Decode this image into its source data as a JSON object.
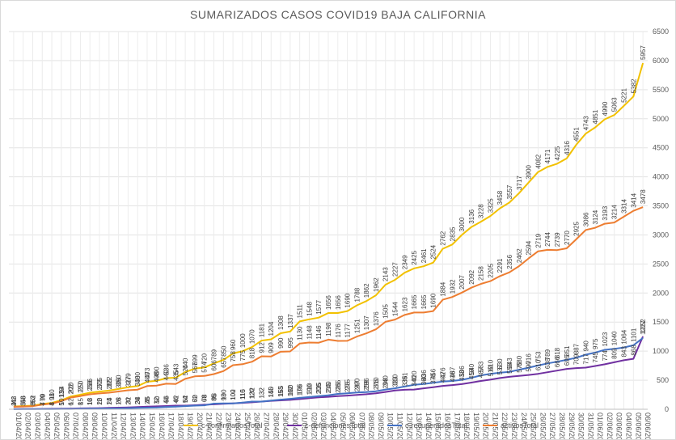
{
  "chart_data": {
    "type": "line",
    "title": "SUMARIZADOS CASOS COVID19 BAJA CALIFORNIA",
    "xlabel": "",
    "ylabel": "",
    "ylim": [
      0,
      6500
    ],
    "yticks": [
      0,
      500,
      1000,
      1500,
      2000,
      2500,
      3000,
      3500,
      4000,
      4500,
      5000,
      5500,
      6000,
      6500
    ],
    "grid": "vertical and horizontal",
    "legend_position": "bottom",
    "categories": [
      "01/04/20",
      "02/04/20",
      "03/04/20",
      "04/04/20",
      "05/04/20",
      "06/04/20",
      "07/04/20",
      "08/04/20",
      "09/04/20",
      "10/04/20",
      "11/04/20",
      "12/04/20",
      "13/04/20",
      "14/04/20",
      "15/04/20",
      "16/04/20",
      "17/04/20",
      "18/04/20",
      "19/04/20",
      "20/04/20",
      "21/04/20",
      "22/04/20",
      "23/04/20",
      "24/04/20",
      "25/04/20",
      "26/04/20",
      "27/04/20",
      "28/04/20",
      "29/04/20",
      "30/04/20",
      "01/05/20",
      "02/05/20",
      "03/05/20",
      "04/05/20",
      "05/05/20",
      "06/05/20",
      "07/05/20",
      "08/05/20",
      "09/05/20",
      "10/05/20",
      "11/05/20",
      "12/05/20",
      "13/05/20",
      "14/05/20",
      "15/05/20",
      "16/05/20",
      "17/05/20",
      "18/05/20",
      "19/05/20",
      "20/05/20",
      "21/05/20",
      "22/05/20",
      "23/05/20",
      "24/05/20",
      "25/05/20",
      "26/05/20",
      "27/05/20",
      "28/05/20",
      "29/05/20",
      "30/05/20",
      "31/05/20",
      "01/06/20",
      "02/06/20",
      "03/06/20",
      "04/06/20",
      "05/06/20",
      "06/06/20"
    ],
    "series": [
      {
        "name": "c-confirmadosTotal",
        "color": "#f2c100",
        "values": [
          48,
          56,
          62,
          90,
          110,
          154,
          220,
          250,
          286,
          305,
          322,
          350,
          379,
          400,
          473,
          490,
          536,
          543,
          640,
          699,
          720,
          789,
          850,
          960,
          1000,
          1070,
          1181,
          1204,
          1308,
          1337,
          1511,
          1548,
          1577,
          1656,
          1656,
          1690,
          1788,
          1862,
          1962,
          2143,
          2227,
          2349,
          2425,
          2461,
          2524,
          2762,
          2835,
          3000,
          3136,
          3228,
          3325,
          3458,
          3557,
          3717,
          3900,
          4082,
          4171,
          4225,
          4316,
          4551,
          4743,
          4851,
          4990,
          5063,
          5221,
          5382,
          5957
        ]
      },
      {
        "name": "c-defuncionesTotal",
        "color": "#7030a0",
        "values": [
          4,
          5,
          6,
          7,
          8,
          10,
          12,
          15,
          18,
          20,
          23,
          28,
          32,
          38,
          45,
          50,
          56,
          62,
          62,
          70,
          78,
          85,
          93,
          100,
          110,
          120,
          132,
          145,
          153,
          162,
          176,
          190,
          206,
          215,
          225,
          235,
          247,
          259,
          276,
          298,
          323,
          335,
          340,
          360,
          378,
          402,
          416,
          433,
          459,
          487,
          510,
          537,
          558,
          575,
          590,
          610,
          638,
          666,
          695,
          709,
          717,
          745,
          774,
          809,
          843,
          868,
          1252
        ]
      },
      {
        "name": "c-recuperadosTotal",
        "color": "#4472c4",
        "values": [
          2,
          3,
          3,
          4,
          4,
          5,
          6,
          8,
          10,
          12,
          14,
          16,
          20,
          24,
          28,
          32,
          40,
          46,
          54,
          62,
          68,
          98,
          100,
          102,
          115,
          132,
          132,
          150,
          165,
          180,
          196,
          210,
          225,
          240,
          265,
          275,
          290,
          296,
          310,
          340,
          360,
          391,
          420,
          436,
          456,
          476,
          487,
          506,
          540,
          583,
          610,
          630,
          643,
          680,
          716,
          753,
          789,
          818,
          851,
          887,
          940,
          975,
          1023,
          1040,
          1064,
          1101,
          1227
        ]
      },
      {
        "name": "activosTotal",
        "color": "#ed7d31",
        "values": [
          42,
          48,
          53,
          79,
          98,
          139,
          202,
          227,
          258,
          273,
          285,
          306,
          327,
          338,
          400,
          408,
          440,
          435,
          524,
          567,
          574,
          606,
          657,
          758,
          775,
          818,
          912,
          909,
          990,
          995,
          1130,
          1148,
          1146,
          1198,
          1176,
          1177,
          1251,
          1307,
          1376,
          1505,
          1544,
          1623,
          1665,
          1665,
          1690,
          1884,
          1932,
          2007,
          2092,
          2158,
          2205,
          2291,
          2356,
          2462,
          2594,
          2719,
          2744,
          2739,
          2770,
          2925,
          3086,
          3124,
          3193,
          3214,
          3314,
          3414,
          3478
        ]
      }
    ]
  }
}
